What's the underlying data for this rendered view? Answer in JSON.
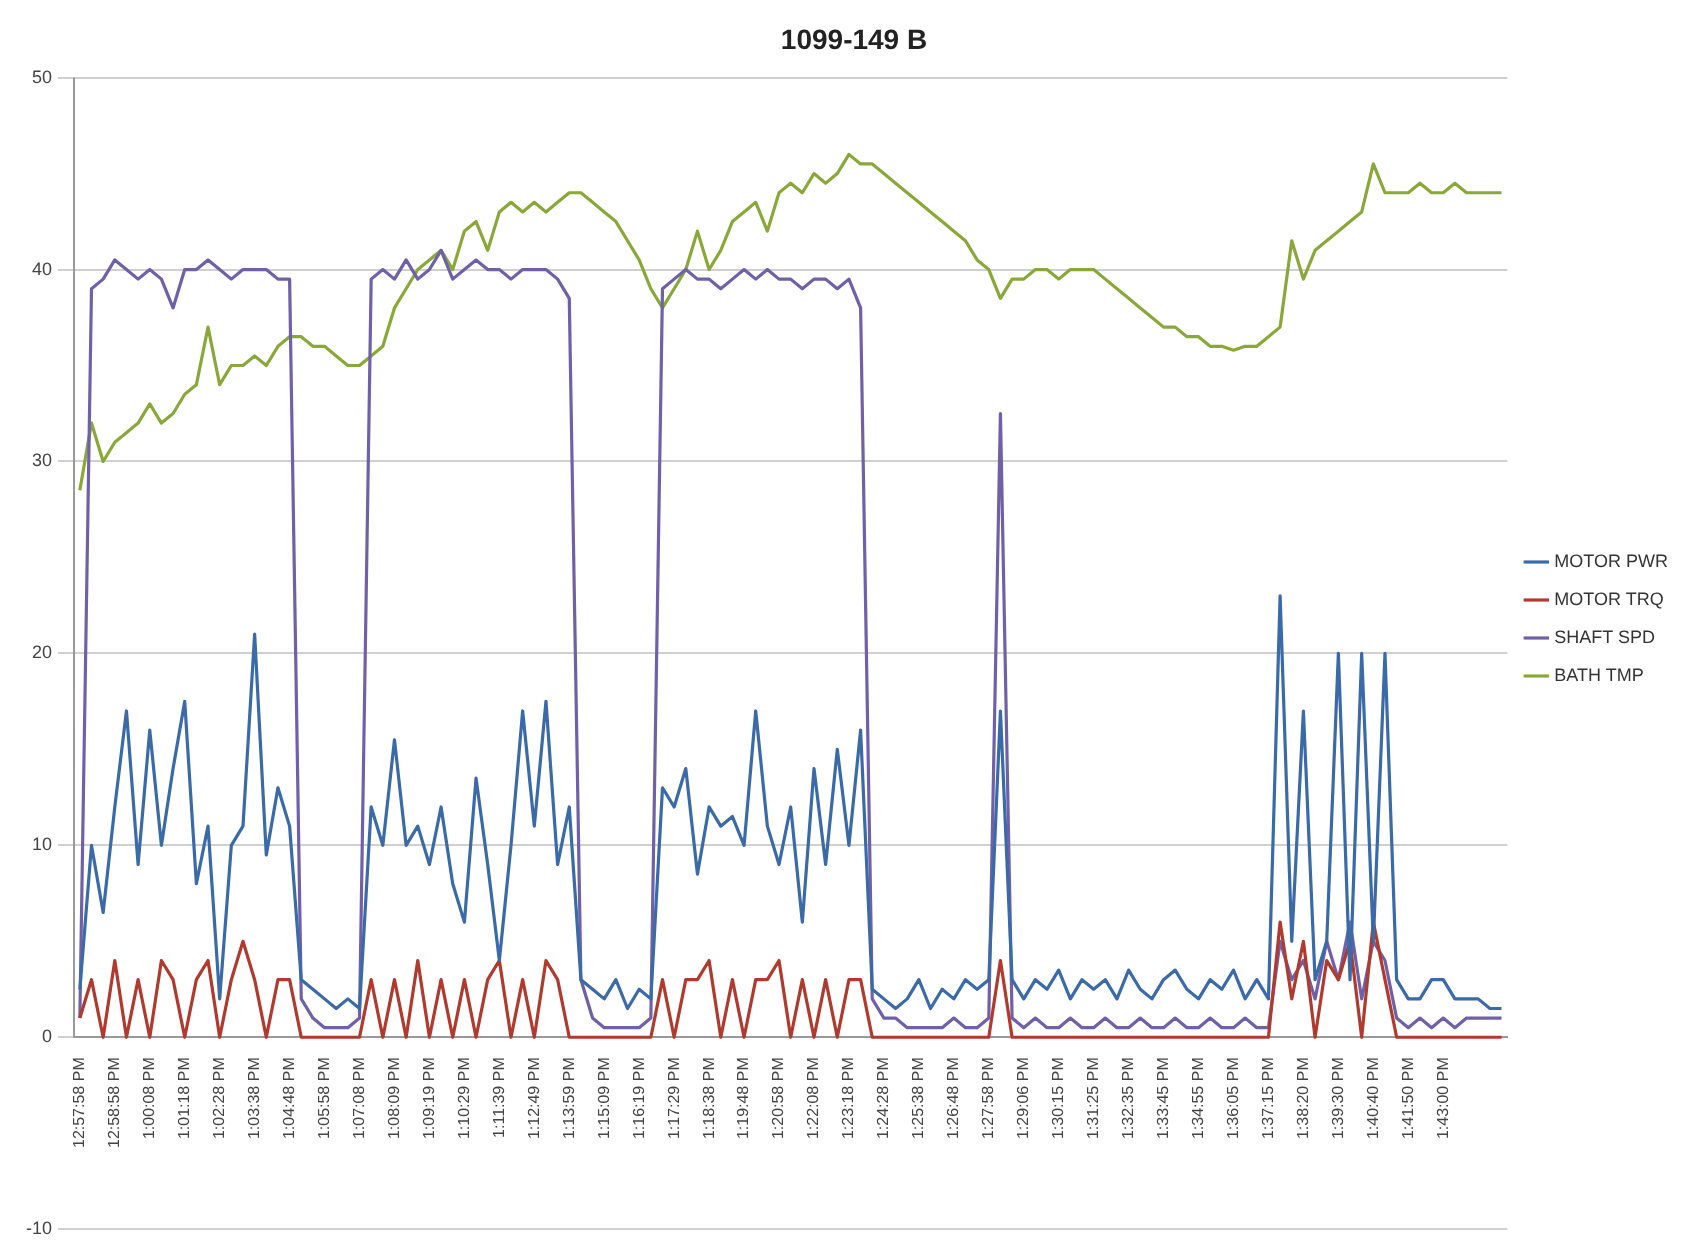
{
  "chart_data": {
    "type": "line",
    "title": "1099-149 B",
    "categories": [
      "12:57:58 PM",
      null,
      null,
      "12:58:58 PM",
      null,
      null,
      "1:00:08 PM",
      null,
      null,
      "1:01:18 PM",
      null,
      null,
      "1:02:28 PM",
      null,
      null,
      "1:03:38 PM",
      null,
      null,
      "1:04:48 PM",
      null,
      null,
      "1:05:58 PM",
      null,
      null,
      "1:07:08 PM",
      null,
      null,
      "1:08:09 PM",
      null,
      null,
      "1:09:19 PM",
      null,
      null,
      "1:10:29 PM",
      null,
      null,
      "1:11:39 PM",
      null,
      null,
      "1:12:49 PM",
      null,
      null,
      "1:13:59 PM",
      null,
      null,
      "1:15:09 PM",
      null,
      null,
      "1:16:19 PM",
      null,
      null,
      "1:17:29 PM",
      null,
      null,
      "1:18:38 PM",
      null,
      null,
      "1:19:48 PM",
      null,
      null,
      "1:20:58 PM",
      null,
      null,
      "1:22:08 PM",
      null,
      null,
      "1:23:18 PM",
      null,
      null,
      "1:24:28 PM",
      null,
      null,
      "1:25:38 PM",
      null,
      null,
      "1:26:48 PM",
      null,
      null,
      "1:27:58 PM",
      null,
      null,
      "1:29:06 PM",
      null,
      null,
      "1:30:15 PM",
      null,
      null,
      "1:31:25 PM",
      null,
      null,
      "1:32:35 PM",
      null,
      null,
      "1:33:45 PM",
      null,
      null,
      "1:34:55 PM",
      null,
      null,
      "1:36:05 PM",
      null,
      null,
      "1:37:15 PM",
      null,
      null,
      "1:38:20 PM",
      null,
      null,
      "1:39:30 PM",
      null,
      null,
      "1:40:40 PM",
      null,
      null,
      "1:41:50 PM",
      null,
      null,
      "1:43:00 PM",
      null,
      null,
      null,
      null,
      null
    ],
    "series": [
      {
        "name": "MOTOR PWR",
        "color": "#3a6aa8",
        "values": [
          2.5,
          10,
          6.5,
          12,
          17,
          9,
          16,
          10,
          14,
          17.5,
          8,
          11,
          2,
          10,
          11,
          21,
          9.5,
          13,
          11,
          3,
          2.5,
          2,
          1.5,
          2,
          1.5,
          12,
          10,
          15.5,
          10,
          11,
          9,
          12,
          8,
          6,
          13.5,
          9,
          4,
          10,
          17,
          11,
          17.5,
          9,
          12,
          3,
          2.5,
          2,
          3,
          1.5,
          2.5,
          2,
          13,
          12,
          14,
          8.5,
          12,
          11,
          11.5,
          10,
          17,
          11,
          9,
          12,
          6,
          14,
          9,
          15,
          10,
          16,
          2.5,
          2,
          1.5,
          2,
          3,
          1.5,
          2.5,
          2,
          3,
          2.5,
          3,
          17,
          3,
          2,
          3,
          2.5,
          3.5,
          2,
          3,
          2.5,
          3,
          2,
          3.5,
          2.5,
          2,
          3,
          3.5,
          2.5,
          2,
          3,
          2.5,
          3.5,
          2,
          3,
          2,
          23,
          5,
          17,
          3,
          5,
          20,
          3,
          20,
          5,
          20,
          3,
          2,
          2,
          3,
          3,
          2,
          2,
          2,
          1.5,
          1.5
        ]
      },
      {
        "name": "MOTOR TRQ",
        "color": "#b03a2e",
        "values": [
          1,
          3,
          0,
          4,
          0,
          3,
          0,
          4,
          3,
          0,
          3,
          4,
          0,
          3,
          5,
          3,
          0,
          3,
          3,
          0,
          0,
          0,
          0,
          0,
          0,
          3,
          0,
          3,
          0,
          4,
          0,
          3,
          0,
          3,
          0,
          3,
          4,
          0,
          3,
          0,
          4,
          3,
          0,
          0,
          0,
          0,
          0,
          0,
          0,
          0,
          3,
          0,
          3,
          3,
          4,
          0,
          3,
          0,
          3,
          3,
          4,
          0,
          3,
          0,
          3,
          0,
          3,
          3,
          0,
          0,
          0,
          0,
          0,
          0,
          0,
          0,
          0,
          0,
          0,
          4,
          0,
          0,
          0,
          0,
          0,
          0,
          0,
          0,
          0,
          0,
          0,
          0,
          0,
          0,
          0,
          0,
          0,
          0,
          0,
          0,
          0,
          0,
          0,
          6,
          2,
          5,
          0,
          4,
          3,
          5,
          0,
          6,
          3,
          0,
          0,
          0,
          0,
          0,
          0,
          0,
          0,
          0,
          0
        ]
      },
      {
        "name": "SHAFT SPD",
        "color": "#7060a8",
        "values": [
          1,
          39,
          39.5,
          40.5,
          40,
          39.5,
          40,
          39.5,
          38,
          40,
          40,
          40.5,
          40,
          39.5,
          40,
          40,
          40,
          39.5,
          39.5,
          2,
          1,
          0.5,
          0.5,
          0.5,
          1,
          39.5,
          40,
          39.5,
          40.5,
          39.5,
          40,
          41,
          39.5,
          40,
          40.5,
          40,
          40,
          39.5,
          40,
          40,
          40,
          39.5,
          38.5,
          3,
          1,
          0.5,
          0.5,
          0.5,
          0.5,
          1,
          39,
          39.5,
          40,
          39.5,
          39.5,
          39,
          39.5,
          40,
          39.5,
          40,
          39.5,
          39.5,
          39,
          39.5,
          39.5,
          39,
          39.5,
          38,
          2,
          1,
          1,
          0.5,
          0.5,
          0.5,
          0.5,
          1,
          0.5,
          0.5,
          1,
          32.5,
          1,
          0.5,
          1,
          0.5,
          0.5,
          1,
          0.5,
          0.5,
          1,
          0.5,
          0.5,
          1,
          0.5,
          0.5,
          1,
          0.5,
          0.5,
          1,
          0.5,
          0.5,
          1,
          0.5,
          0.5,
          5,
          3,
          4,
          2,
          5,
          3,
          6,
          2,
          5,
          4,
          1,
          0.5,
          1,
          0.5,
          1,
          0.5,
          1,
          1,
          1,
          1
        ]
      },
      {
        "name": "BATH TMP",
        "color": "#8aa83a",
        "values": [
          28.5,
          32,
          30,
          31,
          31.5,
          32,
          33,
          32,
          32.5,
          33.5,
          34,
          37,
          34,
          35,
          35,
          35.5,
          35,
          36,
          36.5,
          36.5,
          36,
          36,
          35.5,
          35,
          35,
          35.5,
          36,
          38,
          39,
          40,
          40.5,
          41,
          40,
          42,
          42.5,
          41,
          43,
          43.5,
          43,
          43.5,
          43,
          43.5,
          44,
          44,
          43.5,
          43,
          42.5,
          41.5,
          40.5,
          39,
          38,
          39,
          40,
          42,
          40,
          41,
          42.5,
          43,
          43.5,
          42,
          44,
          44.5,
          44,
          45,
          44.5,
          45,
          46,
          45.5,
          45.5,
          45,
          44.5,
          44,
          43.5,
          43,
          42.5,
          42,
          41.5,
          40.5,
          40,
          38.5,
          39.5,
          39.5,
          40,
          40,
          39.5,
          40,
          40,
          40,
          39.5,
          39,
          38.5,
          38,
          37.5,
          37,
          37,
          36.5,
          36.5,
          36,
          36,
          35.8,
          36,
          36,
          36.5,
          37,
          41.5,
          39.5,
          41,
          41.5,
          42,
          42.5,
          43,
          45.5,
          44,
          44,
          44,
          44.5,
          44,
          44,
          44.5,
          44,
          44,
          44,
          44
        ]
      }
    ],
    "ylim": [
      -10,
      50
    ],
    "yticks": [
      -10,
      0,
      10,
      20,
      30,
      40,
      50
    ],
    "grid": "y",
    "legend": "right",
    "marker": "none",
    "line_style": "solid"
  }
}
